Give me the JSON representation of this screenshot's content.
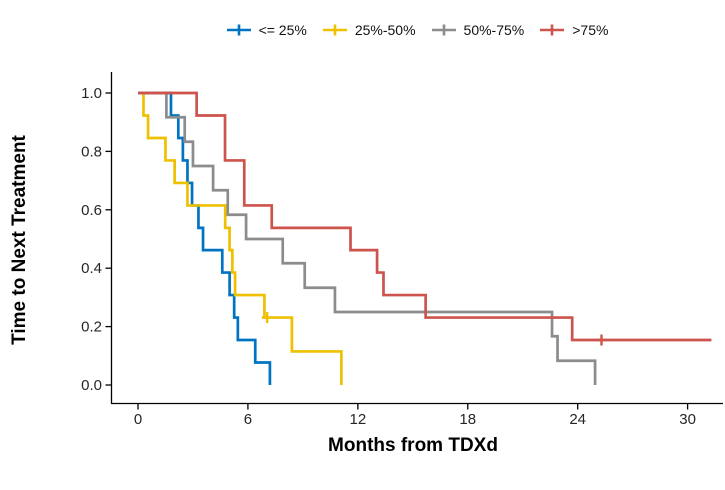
{
  "chart_data": {
    "type": "line",
    "subtype": "kaplan-meier-step",
    "title": "",
    "xlabel": "Months from TDXd",
    "ylabel": "Time to Next Treatment",
    "xlim": [
      0,
      31.5
    ],
    "ylim": [
      0,
      1.0
    ],
    "x_ticks": [
      0,
      6,
      12,
      18,
      24,
      30
    ],
    "y_tick_labels": [
      "1.0",
      "0.8",
      "0.6",
      "0.4",
      "0.2",
      "0.0"
    ],
    "grid": false,
    "legend_position": "top",
    "legend_marker": "plus-censor-icon",
    "axis_color": "#000000",
    "tick_label_color": "#262626",
    "series": [
      {
        "name": "<= 25%",
        "color": "#0073C2",
        "steps": [
          [
            0,
            1.0
          ],
          [
            1.8,
            0.923
          ],
          [
            2.2,
            0.846
          ],
          [
            2.45,
            0.769
          ],
          [
            2.7,
            0.692
          ],
          [
            2.95,
            0.615
          ],
          [
            3.3,
            0.538
          ],
          [
            3.55,
            0.462
          ],
          [
            4.6,
            0.385
          ],
          [
            5.0,
            0.308
          ],
          [
            5.25,
            0.231
          ],
          [
            5.45,
            0.154
          ],
          [
            6.4,
            0.077
          ],
          [
            7.2,
            0.0
          ]
        ],
        "end": 7.2,
        "censors": []
      },
      {
        "name": "25%-50%",
        "color": "#EFC000",
        "steps": [
          [
            0,
            1.0
          ],
          [
            0.3,
            0.923
          ],
          [
            0.55,
            0.846
          ],
          [
            1.5,
            0.769
          ],
          [
            2.0,
            0.692
          ],
          [
            2.7,
            0.615
          ],
          [
            4.76,
            0.538
          ],
          [
            5.0,
            0.462
          ],
          [
            5.15,
            0.385
          ],
          [
            5.3,
            0.308
          ],
          [
            6.9,
            0.231
          ],
          [
            8.4,
            0.115
          ],
          [
            11.1,
            0.0
          ]
        ],
        "end": 11.1,
        "censors": [
          [
            7.05,
            0.231
          ]
        ]
      },
      {
        "name": "50%-75%",
        "color": "#8C8C8C",
        "steps": [
          [
            0,
            1.0
          ],
          [
            1.55,
            0.917
          ],
          [
            2.55,
            0.833
          ],
          [
            3.0,
            0.75
          ],
          [
            4.1,
            0.667
          ],
          [
            4.9,
            0.583
          ],
          [
            5.9,
            0.5
          ],
          [
            7.9,
            0.417
          ],
          [
            9.1,
            0.333
          ],
          [
            10.75,
            0.25
          ],
          [
            22.6,
            0.167
          ],
          [
            22.9,
            0.083
          ],
          [
            24.95,
            0.0
          ]
        ],
        "end": 24.95,
        "censors": []
      },
      {
        "name": ">75%",
        "color": "#CD534C",
        "steps": [
          [
            0,
            1.0
          ],
          [
            3.2,
            0.923
          ],
          [
            4.75,
            0.769
          ],
          [
            5.8,
            0.615
          ],
          [
            7.3,
            0.538
          ],
          [
            11.6,
            0.462
          ],
          [
            13.05,
            0.385
          ],
          [
            13.4,
            0.308
          ],
          [
            15.7,
            0.231
          ],
          [
            23.7,
            0.154
          ]
        ],
        "end": 31.3,
        "censors": [
          [
            25.3,
            0.154
          ]
        ]
      }
    ]
  }
}
